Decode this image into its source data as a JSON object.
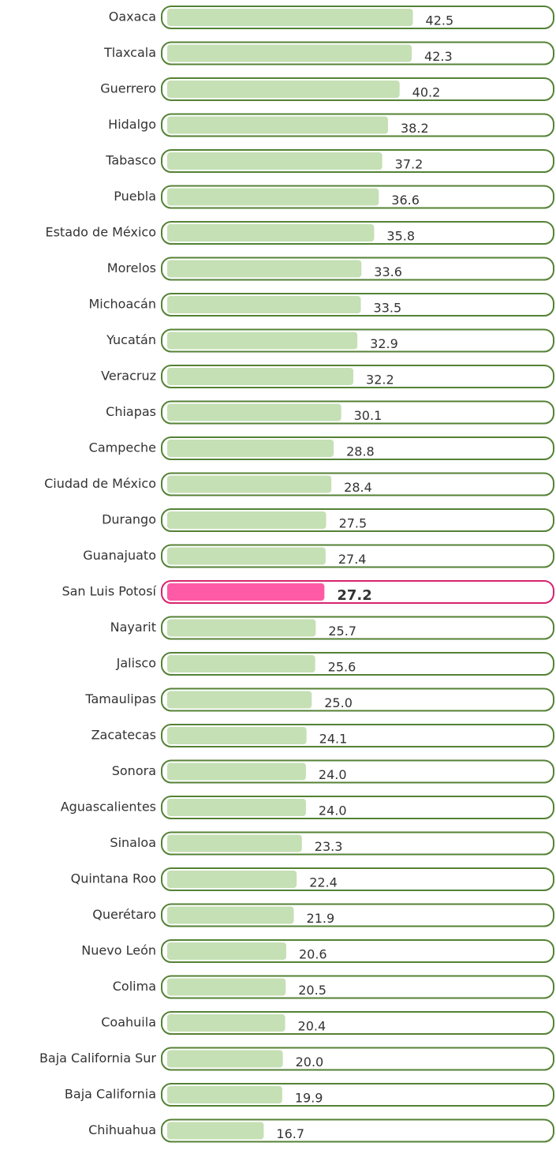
{
  "chart_data": {
    "type": "bar",
    "orientation": "horizontal",
    "categories": [
      "Oaxaca",
      "Tlaxcala",
      "Guerrero",
      "Hidalgo",
      "Tabasco",
      "Puebla",
      "Estado de México",
      "Morelos",
      "Michoacán",
      "Yucatán",
      "Veracruz",
      "Chiapas",
      "Campeche",
      "Ciudad de México",
      "Durango",
      "Guanajuato",
      "San Luis Potosí",
      "Nayarit",
      "Jalisco",
      "Tamaulipas",
      "Zacatecas",
      "Sonora",
      "Aguascalientes",
      "Sinaloa",
      "Quintana Roo",
      "Querétaro",
      "Nuevo León",
      "Colima",
      "Coahuila",
      "Baja California Sur",
      "Baja California",
      "Chihuahua"
    ],
    "values": [
      42.5,
      42.3,
      40.2,
      38.2,
      37.2,
      36.6,
      35.8,
      33.6,
      33.5,
      32.9,
      32.2,
      30.1,
      28.8,
      28.4,
      27.5,
      27.4,
      27.2,
      25.7,
      25.6,
      25,
      24.1,
      24,
      24,
      23.3,
      22.4,
      21.9,
      20.6,
      20.5,
      20.4,
      20,
      19.9,
      16.7
    ],
    "value_labels": [
      "42.5",
      "42.3",
      "40.2",
      "38.2",
      "37.2",
      "36.6",
      "35.8",
      "33.6",
      "33.5",
      "32.9",
      "32.2",
      "30.1",
      "28.8",
      "28.4",
      "27.5",
      "27.4",
      "27.2",
      "25.7",
      "25.6",
      "25.0",
      "24.1",
      "24.0",
      "24.0",
      "23.3",
      "22.4",
      "21.9",
      "20.6",
      "20.5",
      "20.4",
      "20.0",
      "19.9",
      "16.7"
    ],
    "color": "#c5e0b4",
    "outline": "#548235",
    "highlight": {
      "index": 16,
      "color": "#ff5aa5",
      "outline": "#d6246e"
    }
  }
}
